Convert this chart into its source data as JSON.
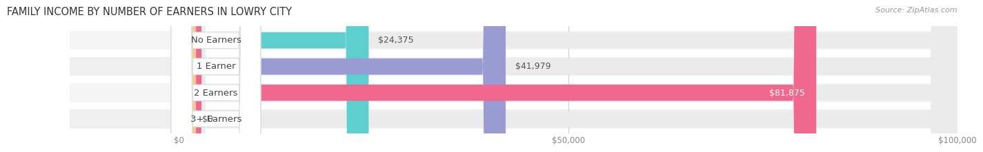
{
  "title": "FAMILY INCOME BY NUMBER OF EARNERS IN LOWRY CITY",
  "source": "Source: ZipAtlas.com",
  "categories": [
    "No Earners",
    "1 Earner",
    "2 Earners",
    "3+ Earners"
  ],
  "values": [
    24375,
    41979,
    81875,
    0
  ],
  "bar_colors": [
    "#5ecfcf",
    "#9b9bd4",
    "#f0688e",
    "#f5c894"
  ],
  "xlim": [
    0,
    100000
  ],
  "xticks": [
    0,
    50000,
    100000
  ],
  "xtick_labels": [
    "$0",
    "$50,000",
    "$100,000"
  ],
  "bg_bar_color": "#ebebeb",
  "background_color": "#ffffff",
  "label_fontsize": 9.5,
  "value_fontsize": 9,
  "title_fontsize": 10.5,
  "bar_row_bg": [
    "#f7f7f7",
    "#f0f0f0"
  ],
  "value_label_inside_color": "#ffffff",
  "value_label_outside_color": "#555555"
}
